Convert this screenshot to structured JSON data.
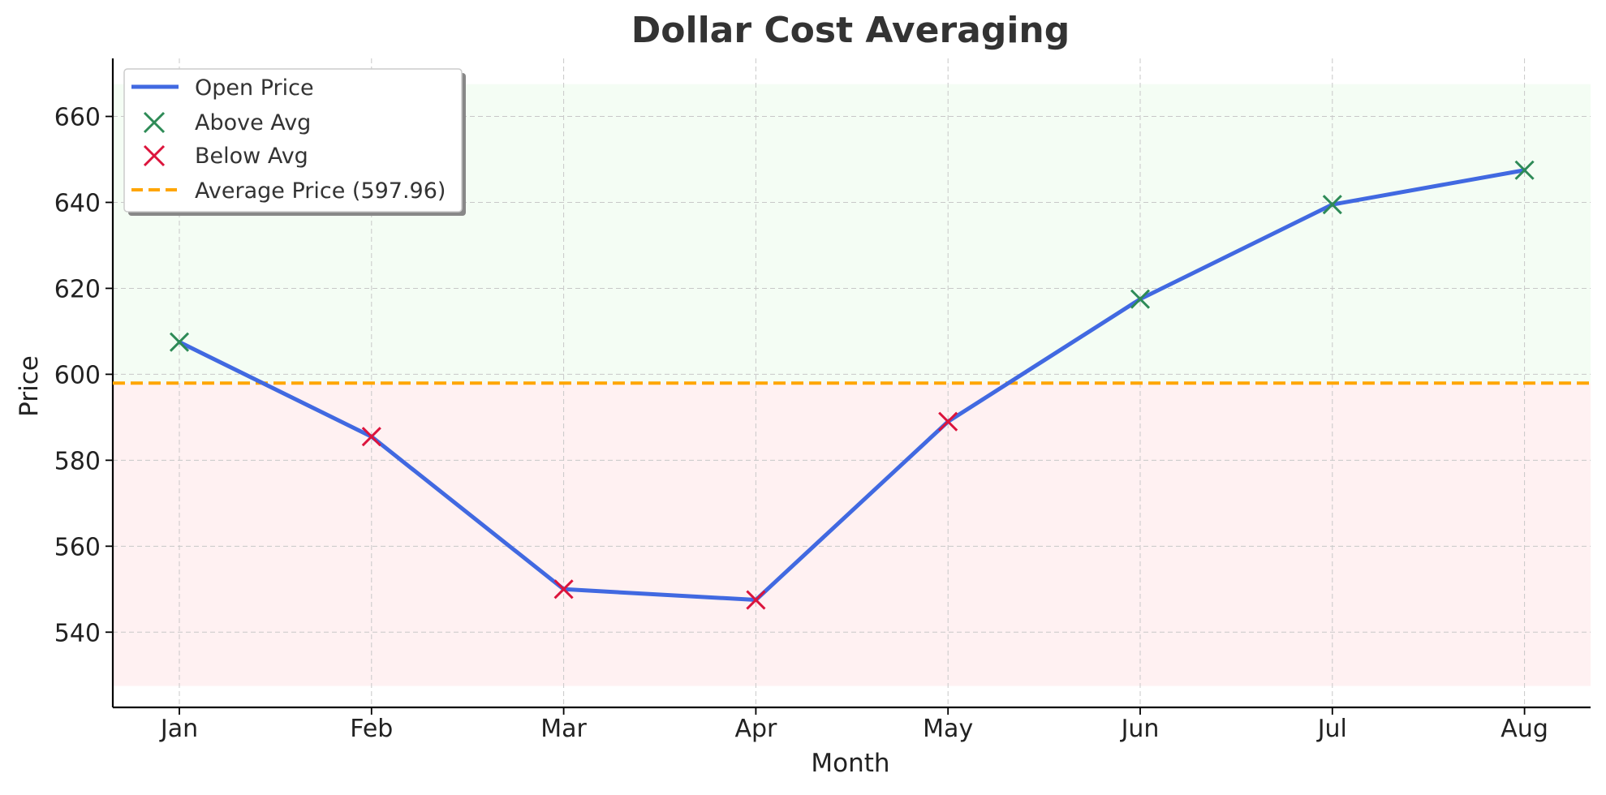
{
  "chart_data": {
    "type": "line",
    "title": "Dollar Cost Averaging",
    "xlabel": "Month",
    "ylabel": "Price",
    "categories": [
      "Jan",
      "Feb",
      "Mar",
      "Apr",
      "May",
      "Jun",
      "Jul",
      "Aug"
    ],
    "series": [
      {
        "name": "Open Price",
        "values": [
          607.5,
          585.5,
          550.0,
          547.5,
          589.0,
          617.5,
          639.5,
          647.5
        ],
        "color": "#4169e1"
      }
    ],
    "average": {
      "label": "Average Price (597.96)",
      "value": 597.96,
      "color": "#ffa500"
    },
    "markers": {
      "above": {
        "label": "Above Avg",
        "color": "#2e8b57"
      },
      "below": {
        "label": "Below Avg",
        "color": "#dc143c"
      }
    },
    "bands": {
      "above_color": "#f4fdf4",
      "below_color": "#fff1f2",
      "range": [
        527.5,
        667.5
      ]
    },
    "ylim": [
      522.5,
      673.5
    ],
    "yticks": [
      540,
      560,
      580,
      600,
      620,
      640,
      660
    ],
    "grid": true,
    "legend": "top-left"
  }
}
